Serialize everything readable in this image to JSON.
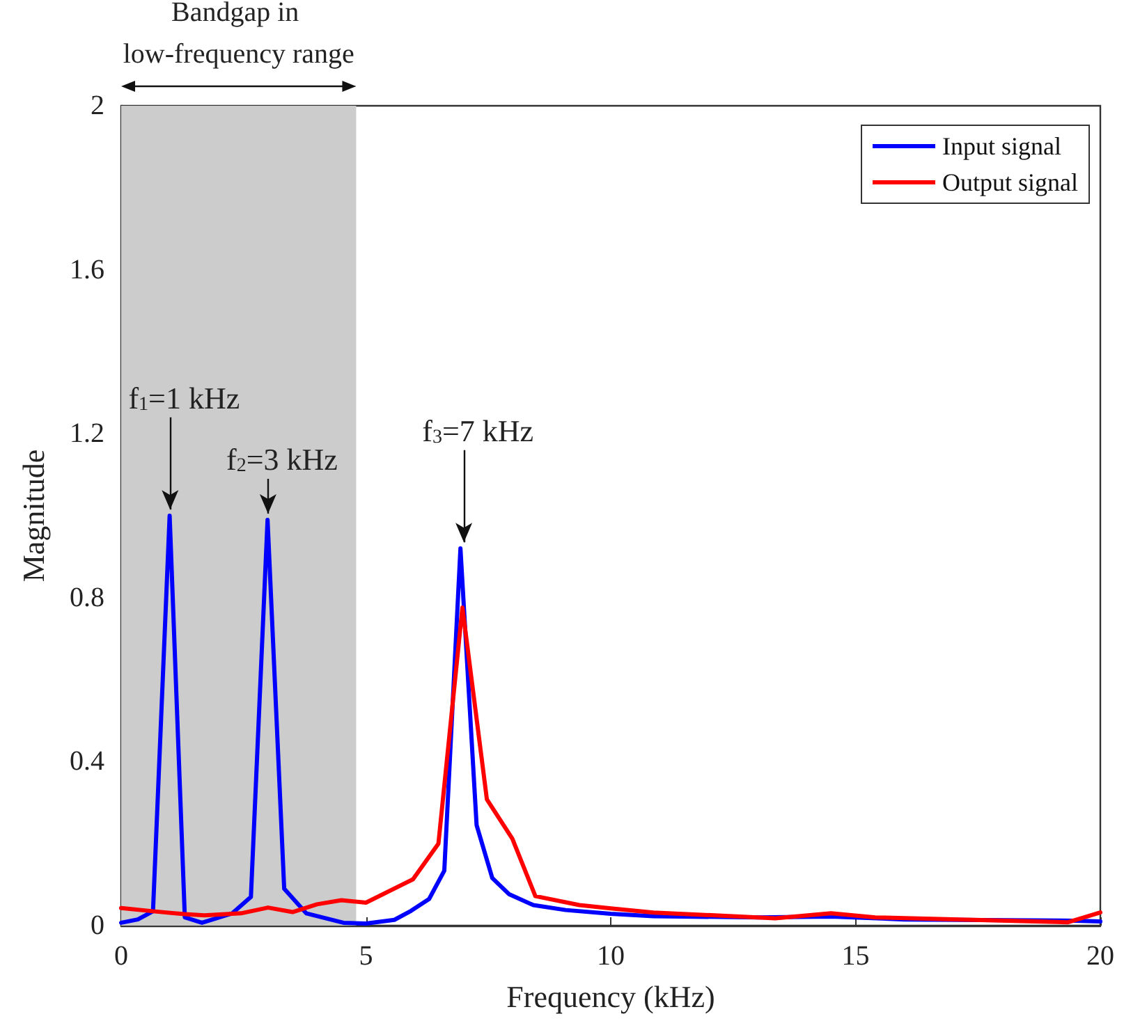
{
  "chart_data": {
    "type": "line",
    "xlabel": "Frequency (kHz)",
    "ylabel": "Magnitude",
    "xlim": [
      0,
      20
    ],
    "xticks": [
      0,
      5,
      10,
      15,
      20
    ],
    "ylim": [
      0,
      2
    ],
    "yticks": [
      0,
      0.4,
      0.8,
      1.2,
      1.6,
      2
    ],
    "grid": false,
    "legend": "top right",
    "marker": "none",
    "line_style": "solid",
    "series": [
      {
        "name": "Input signal",
        "color": "#0000ff",
        "x": [
          0,
          0.34,
          0.65,
          0.99,
          1.3,
          1.65,
          2.27,
          2.65,
          2.99,
          3.33,
          3.78,
          4.54,
          5,
          5.58,
          5.92,
          6.29,
          6.6,
          6.93,
          7.26,
          7.58,
          7.92,
          8.42,
          9.08,
          10,
          10.87,
          13,
          14.5,
          16,
          19.5,
          20
        ],
        "values": [
          0.007,
          0.015,
          0.035,
          1.0,
          0.02,
          0.007,
          0.03,
          0.07,
          0.99,
          0.09,
          0.03,
          0.007,
          0.005,
          0.014,
          0.036,
          0.065,
          0.134,
          0.92,
          0.245,
          0.116,
          0.077,
          0.05,
          0.038,
          0.029,
          0.023,
          0.02,
          0.022,
          0.015,
          0.012,
          0.01
        ]
      },
      {
        "name": "Output signal",
        "color": "#ff0000",
        "x": [
          0,
          0.65,
          1.3,
          1.7,
          2.45,
          3,
          3.5,
          4,
          4.5,
          5,
          5.96,
          6.48,
          6.97,
          7.47,
          7.99,
          8.46,
          9.36,
          10,
          10.87,
          13.36,
          14.5,
          15.4,
          19.33,
          20
        ],
        "values": [
          0.043,
          0.035,
          0.028,
          0.025,
          0.03,
          0.044,
          0.033,
          0.052,
          0.062,
          0.056,
          0.113,
          0.2,
          0.776,
          0.308,
          0.212,
          0.072,
          0.05,
          0.042,
          0.032,
          0.018,
          0.03,
          0.02,
          0.008,
          0.032
        ]
      }
    ],
    "bands": [
      {
        "axis": "x",
        "from": 0,
        "to": 4.8,
        "color": "#cccccc",
        "label": "Bandgap in low-frequency range"
      }
    ],
    "annotations": [
      {
        "text": "f$_{1}$=1 kHz",
        "x": 1,
        "y": 1.0
      },
      {
        "text": "f$_{2}$=3 kHz",
        "x": 3,
        "y": 0.99
      },
      {
        "text": "f$_{3}$=7 kHz",
        "x": 7,
        "y": 0.92
      }
    ]
  }
}
